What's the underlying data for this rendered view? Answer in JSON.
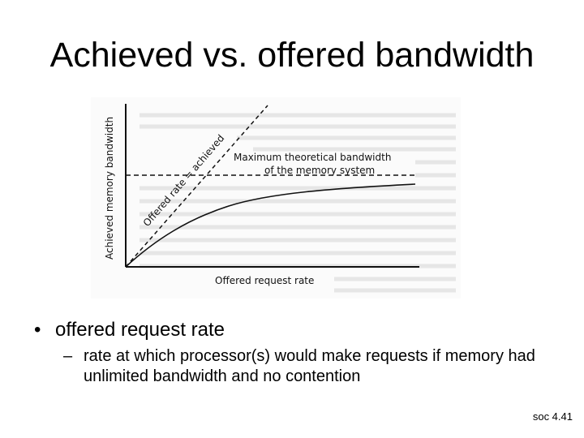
{
  "slide": {
    "title": "Achieved vs. offered bandwidth",
    "footer": "soc 4.41"
  },
  "figure": {
    "y_axis_label": "Achieved memory bandwidth",
    "x_axis_label": "Offered request rate",
    "diagonal_label": "Offered rate = achieved",
    "max_label_line1": "Maximum theoretical bandwidth",
    "max_label_line2": "of the memory system"
  },
  "bullets": {
    "marker_1": "•",
    "item_1": "offered request rate",
    "marker_2": "–",
    "item_2": "rate at which processor(s) would make requests if memory had unlimited bandwidth and no contention"
  }
}
